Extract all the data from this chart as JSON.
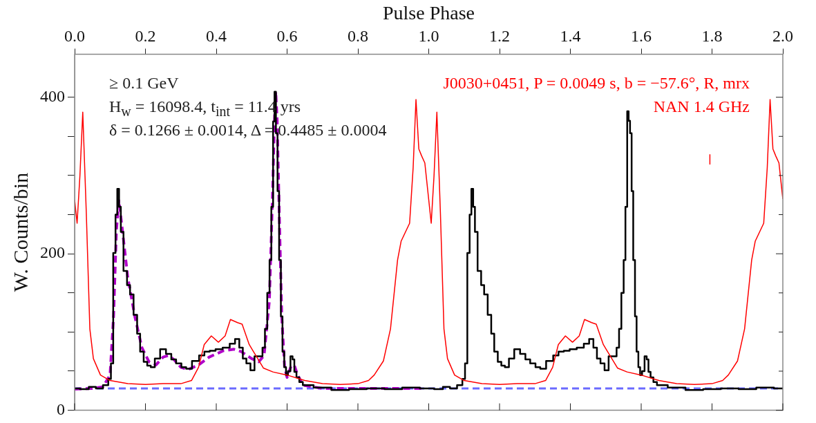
{
  "chart_data": {
    "type": "line",
    "xlabel": "Pulse Phase",
    "ylabel": "W. Counts/bin",
    "xlim": [
      0,
      2
    ],
    "xticks": [
      {
        "value": 0,
        "label": "0.0"
      },
      {
        "value": 0.2,
        "label": "0.2"
      },
      {
        "value": 0.4,
        "label": "0.4"
      },
      {
        "value": 0.6,
        "label": "0.6"
      },
      {
        "value": 0.8,
        "label": "0.8"
      },
      {
        "value": 1,
        "label": "1.0"
      },
      {
        "value": 1.2,
        "label": "1.2"
      },
      {
        "value": 1.4,
        "label": "1.4"
      },
      {
        "value": 1.6,
        "label": "1.6"
      },
      {
        "value": 1.8,
        "label": "1.8"
      },
      {
        "value": 2,
        "label": "2.0"
      }
    ],
    "ylim": [
      0,
      455
    ],
    "yticks": [
      0,
      {
        "value": 50,
        "label": null
      },
      {
        "value": 100,
        "label": null
      },
      {
        "value": 150,
        "label": null
      },
      200,
      {
        "value": 250,
        "label": null
      },
      {
        "value": 300,
        "label": null
      },
      {
        "value": 350,
        "label": null
      },
      400
    ],
    "series": [
      {
        "color": "#ff0000",
        "x": [
          0,
          0.007,
          0.015,
          0.023,
          0.033,
          0.043,
          0.053,
          0.073,
          0.1,
          0.15,
          0.2,
          0.25,
          0.3,
          0.33,
          0.35,
          0.366,
          0.386,
          0.406,
          0.425,
          0.44,
          0.46,
          0.473,
          0.493,
          0.513,
          0.533,
          0.56,
          0.6,
          0.65,
          0.7,
          0.75,
          0.8,
          0.83,
          0.846,
          0.872,
          0.892,
          0.912,
          0.922,
          0.946,
          0.956,
          0.964,
          0.972,
          0.98,
          0.989,
          1,
          1.007,
          1.015,
          1.023,
          1.033,
          1.043,
          1.053,
          1.073,
          1.1,
          1.15,
          1.2,
          1.25,
          1.3,
          1.33,
          1.35,
          1.366,
          1.386,
          1.406,
          1.425,
          1.44,
          1.46,
          1.473,
          1.493,
          1.513,
          1.533,
          1.56,
          1.6,
          1.65,
          1.7,
          1.75,
          1.8,
          1.83,
          1.846,
          1.872,
          1.892,
          1.912,
          1.922,
          1.946,
          1.956,
          1.964,
          1.972,
          1.98,
          1.989,
          2
        ],
        "values": [
          269,
          239,
          300,
          381,
          252,
          104,
          66,
          45,
          38,
          34,
          33,
          34,
          34,
          38,
          55,
          84,
          95,
          87,
          95,
          116,
          112,
          110,
          84,
          69,
          54,
          49,
          45,
          38,
          34,
          33,
          34,
          38,
          45,
          63,
          104,
          192,
          216,
          239,
          310,
          397,
          334,
          325,
          316,
          269,
          239,
          300,
          381,
          252,
          104,
          66,
          45,
          38,
          34,
          33,
          34,
          34,
          38,
          55,
          84,
          95,
          87,
          95,
          116,
          112,
          110,
          84,
          69,
          54,
          49,
          45,
          38,
          34,
          33,
          34,
          38,
          45,
          63,
          104,
          192,
          216,
          239,
          310,
          397,
          334,
          325,
          316,
          270
        ]
      },
      {
        "type": "step",
        "color": "#000000",
        "x": [
          0,
          0.03,
          0.05,
          0.07,
          0.09,
          0.1,
          0.105,
          0.113,
          0.118,
          0.123,
          0.128,
          0.133,
          0.143,
          0.153,
          0.16,
          0.173,
          0.18,
          0.19,
          0.2,
          0.21,
          0.22,
          0.233,
          0.25,
          0.266,
          0.28,
          0.293,
          0.31,
          0.32,
          0.343,
          0.36,
          0.373,
          0.39,
          0.406,
          0.43,
          0.446,
          0.46,
          0.47,
          0.48,
          0.49,
          0.503,
          0.513,
          0.526,
          0.535,
          0.54,
          0.548,
          0.553,
          0.558,
          0.563,
          0.566,
          0.571,
          0.575,
          0.58,
          0.585,
          0.589,
          0.595,
          0.599,
          0.606,
          0.613,
          0.618,
          0.623,
          0.63,
          0.639,
          0.65,
          0.7,
          0.75,
          0.8,
          0.85,
          0.9,
          0.95,
          1,
          1.03,
          1.05,
          1.07,
          1.09,
          1.1,
          1.105,
          1.113,
          1.118,
          1.123,
          1.128,
          1.133,
          1.143,
          1.153,
          1.16,
          1.173,
          1.18,
          1.19,
          1.2,
          1.21,
          1.22,
          1.233,
          1.25,
          1.266,
          1.28,
          1.293,
          1.31,
          1.32,
          1.343,
          1.36,
          1.373,
          1.39,
          1.406,
          1.43,
          1.446,
          1.46,
          1.47,
          1.48,
          1.49,
          1.503,
          1.513,
          1.526,
          1.535,
          1.54,
          1.548,
          1.553,
          1.558,
          1.563,
          1.566,
          1.571,
          1.575,
          1.58,
          1.585,
          1.589,
          1.595,
          1.599,
          1.606,
          1.613,
          1.618,
          1.623,
          1.63,
          1.639,
          1.65,
          1.7,
          1.75,
          1.8,
          1.85,
          1.9,
          1.95,
          2
        ],
        "values": [
          28,
          27,
          30,
          28,
          32,
          40,
          60,
          201,
          250,
          283,
          260,
          228,
          178,
          160,
          148,
          122,
          98,
          75,
          62,
          57,
          55,
          66,
          78,
          72,
          65,
          60,
          55,
          53,
          63,
          70,
          75,
          76,
          78,
          80,
          85,
          91,
          80,
          66,
          60,
          51,
          69,
          69,
          80,
          104,
          150,
          192,
          260,
          369,
          407,
          354,
          280,
          192,
          120,
          75,
          55,
          45,
          50,
          69,
          65,
          49,
          42,
          36,
          32,
          29,
          26,
          27,
          28,
          27,
          29,
          28,
          27,
          30,
          28,
          32,
          40,
          60,
          201,
          250,
          283,
          260,
          228,
          178,
          160,
          148,
          122,
          98,
          75,
          62,
          57,
          55,
          66,
          78,
          72,
          65,
          60,
          55,
          53,
          63,
          70,
          75,
          76,
          78,
          80,
          85,
          91,
          80,
          66,
          60,
          51,
          69,
          69,
          80,
          104,
          150,
          192,
          260,
          382,
          370,
          354,
          280,
          192,
          120,
          75,
          55,
          45,
          50,
          69,
          65,
          49,
          42,
          36,
          32,
          29,
          26,
          27,
          28,
          27,
          29,
          28
        ]
      },
      {
        "color": "#b000c8",
        "line_style": "dashed",
        "x": [
          0,
          0.05,
          0.08,
          0.1,
          0.11,
          0.118,
          0.125,
          0.135,
          0.15,
          0.17,
          0.19,
          0.21,
          0.23,
          0.25,
          0.265,
          0.28,
          0.3,
          0.32,
          0.35,
          0.38,
          0.42,
          0.45,
          0.47,
          0.5,
          0.52,
          0.535,
          0.55,
          0.558,
          0.565,
          0.568,
          0.572,
          0.578,
          0.585,
          0.593,
          0.6,
          0.61,
          0.62,
          0.63,
          0.645,
          0.7,
          0.8,
          0.9,
          0.98
        ],
        "values": [
          27,
          28,
          30,
          45,
          120,
          230,
          268,
          230,
          170,
          120,
          80,
          62,
          58,
          68,
          70,
          65,
          55,
          52,
          58,
          68,
          76,
          78,
          75,
          66,
          62,
          70,
          140,
          260,
          380,
          407,
          370,
          250,
          120,
          55,
          42,
          55,
          58,
          45,
          32,
          28,
          28,
          28,
          28
        ]
      },
      {
        "color": "#ff0000",
        "x": [
          1.794,
          1.794
        ],
        "values": [
          314,
          327
        ]
      }
    ],
    "ref_lines": [
      {
        "axis": "y",
        "value": 28,
        "color": "#6a6aff",
        "line_style": "dashed"
      }
    ],
    "annotations": [
      "≥ 0.1 GeV",
      "H$_{w}$ = 16098.4, t$_{int}$ = 11.4 yrs",
      "δ = 0.1266 ± 0.0014, Δ = 0.4485 ± 0.0004",
      "J0030+0451, P = 0.0049 s, b = −57.6°, R, mrx",
      "NAN 1.4 GHz"
    ]
  }
}
